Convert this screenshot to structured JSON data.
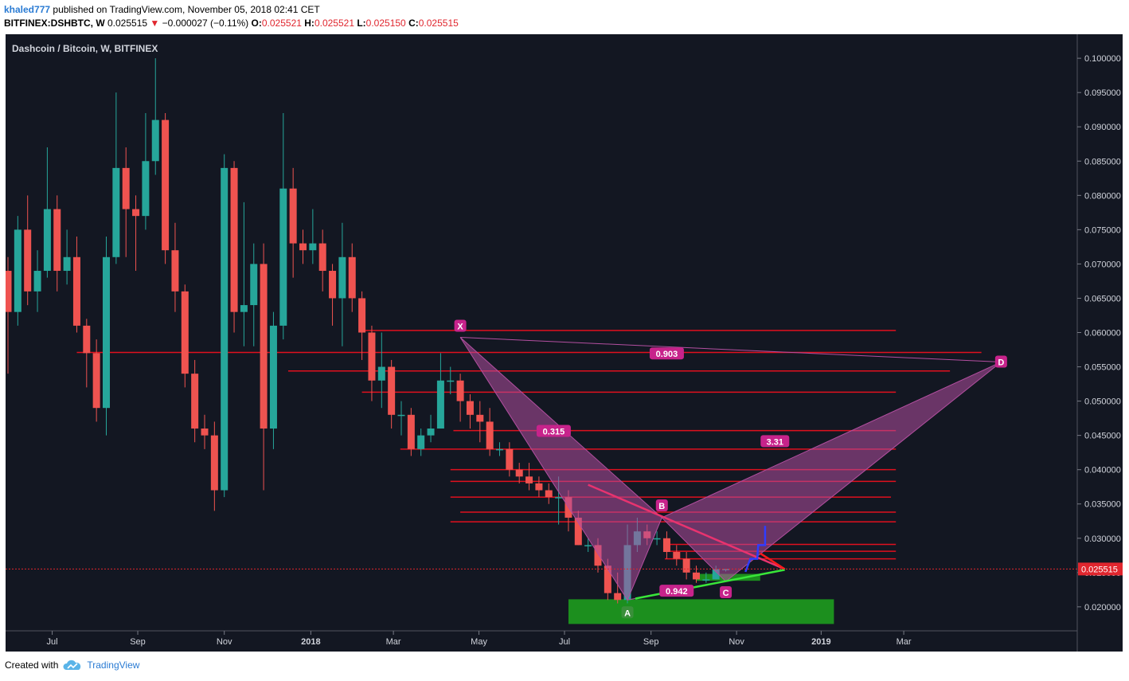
{
  "header": {
    "user": "khaled777",
    "published_text": "published on TradingView.com, November 05, 2018 02:41 CET",
    "symbol_line": "BITFINEX:DSHBTC, W",
    "last": "0.025515",
    "change": "−0.000027 (−0.11%)",
    "o_label": "O:",
    "o": "0.025521",
    "h_label": "H:",
    "h": "0.025521",
    "l_label": "L:",
    "l": "0.025150",
    "c_label": "C:",
    "c": "0.025515"
  },
  "footer": {
    "created_with": "Created with",
    "brand": "TradingView"
  },
  "colors": {
    "background": "#131722",
    "up": "#26a69a",
    "down": "#ef5350",
    "level_line": "#e0101e",
    "pattern_fill": "#b34fa0",
    "pattern_label": "#c7238b",
    "green_zone": "#1e9c1e",
    "green_line": "#39e639",
    "price_tag": "#e0262e"
  },
  "chart_data": {
    "type": "candlestick",
    "title": "Dashcoin / Bitcoin, W, BITFINEX",
    "y_axis": {
      "ylim": [
        0.0165,
        0.1035
      ],
      "ticks": [
        "0.020000",
        "0.025000",
        "0.030000",
        "0.035000",
        "0.040000",
        "0.045000",
        "0.050000",
        "0.055000",
        "0.060000",
        "0.065000",
        "0.070000",
        "0.075000",
        "0.080000",
        "0.085000",
        "0.090000",
        "0.095000",
        "0.100000"
      ],
      "last_price_label": "0.025515",
      "last_price": 0.025515
    },
    "x_axis": {
      "labels": [
        {
          "text": "Jul",
          "bar": 4.5,
          "bold": false
        },
        {
          "text": "Sep",
          "bar": 13.2,
          "bold": false
        },
        {
          "text": "Nov",
          "bar": 22.0,
          "bold": false
        },
        {
          "text": "2018",
          "bar": 30.8,
          "bold": true
        },
        {
          "text": "Mar",
          "bar": 39.2,
          "bold": false
        },
        {
          "text": "May",
          "bar": 47.9,
          "bold": false
        },
        {
          "text": "Jul",
          "bar": 56.6,
          "bold": false
        },
        {
          "text": "Sep",
          "bar": 65.4,
          "bold": false
        },
        {
          "text": "Nov",
          "bar": 74.1,
          "bold": false
        },
        {
          "text": "2019",
          "bar": 82.7,
          "bold": true
        },
        {
          "text": "Mar",
          "bar": 91.1,
          "bold": false
        }
      ]
    },
    "candles": [
      [
        0.069,
        0.063,
        0.071,
        0.054
      ],
      [
        0.063,
        0.075,
        0.077,
        0.061
      ],
      [
        0.075,
        0.066,
        0.08,
        0.064
      ],
      [
        0.066,
        0.069,
        0.072,
        0.063
      ],
      [
        0.069,
        0.078,
        0.087,
        0.068
      ],
      [
        0.078,
        0.069,
        0.08,
        0.066
      ],
      [
        0.069,
        0.071,
        0.075,
        0.067
      ],
      [
        0.071,
        0.061,
        0.074,
        0.06
      ],
      [
        0.061,
        0.057,
        0.062,
        0.052
      ],
      [
        0.057,
        0.049,
        0.059,
        0.047
      ],
      [
        0.049,
        0.071,
        0.074,
        0.045
      ],
      [
        0.071,
        0.084,
        0.095,
        0.07
      ],
      [
        0.084,
        0.078,
        0.087,
        0.071
      ],
      [
        0.078,
        0.077,
        0.08,
        0.069
      ],
      [
        0.077,
        0.085,
        0.092,
        0.075
      ],
      [
        0.085,
        0.091,
        0.1,
        0.083
      ],
      [
        0.091,
        0.072,
        0.092,
        0.07
      ],
      [
        0.072,
        0.066,
        0.076,
        0.063
      ],
      [
        0.066,
        0.054,
        0.067,
        0.052
      ],
      [
        0.054,
        0.046,
        0.056,
        0.044
      ],
      [
        0.046,
        0.045,
        0.048,
        0.043
      ],
      [
        0.045,
        0.037,
        0.047,
        0.034
      ],
      [
        0.037,
        0.084,
        0.086,
        0.036
      ],
      [
        0.084,
        0.063,
        0.085,
        0.06
      ],
      [
        0.063,
        0.064,
        0.079,
        0.058
      ],
      [
        0.064,
        0.07,
        0.073,
        0.058
      ],
      [
        0.07,
        0.046,
        0.073,
        0.037
      ],
      [
        0.046,
        0.061,
        0.063,
        0.043
      ],
      [
        0.061,
        0.081,
        0.092,
        0.059
      ],
      [
        0.081,
        0.073,
        0.084,
        0.068
      ],
      [
        0.073,
        0.072,
        0.075,
        0.07
      ],
      [
        0.072,
        0.073,
        0.078,
        0.07
      ],
      [
        0.073,
        0.069,
        0.075,
        0.066
      ],
      [
        0.069,
        0.065,
        0.07,
        0.061
      ],
      [
        0.065,
        0.071,
        0.076,
        0.058
      ],
      [
        0.071,
        0.065,
        0.073,
        0.063
      ],
      [
        0.065,
        0.06,
        0.066,
        0.056
      ],
      [
        0.06,
        0.053,
        0.061,
        0.05
      ],
      [
        0.053,
        0.055,
        0.06,
        0.049
      ],
      [
        0.055,
        0.048,
        0.056,
        0.046
      ],
      [
        0.048,
        0.048,
        0.05,
        0.045
      ],
      [
        0.048,
        0.043,
        0.049,
        0.042
      ],
      [
        0.043,
        0.045,
        0.046,
        0.042
      ],
      [
        0.045,
        0.046,
        0.048,
        0.044
      ],
      [
        0.046,
        0.053,
        0.057,
        0.046
      ],
      [
        0.053,
        0.053,
        0.055,
        0.051
      ],
      [
        0.053,
        0.05,
        0.054,
        0.047
      ],
      [
        0.05,
        0.048,
        0.051,
        0.046
      ],
      [
        0.048,
        0.047,
        0.05,
        0.044
      ],
      [
        0.047,
        0.043,
        0.049,
        0.042
      ],
      [
        0.043,
        0.043,
        0.044,
        0.042
      ],
      [
        0.043,
        0.04,
        0.044,
        0.039
      ],
      [
        0.04,
        0.039,
        0.041,
        0.038
      ],
      [
        0.039,
        0.038,
        0.041,
        0.037
      ],
      [
        0.038,
        0.037,
        0.039,
        0.036
      ],
      [
        0.037,
        0.036,
        0.038,
        0.035
      ],
      [
        0.036,
        0.036,
        0.039,
        0.032
      ],
      [
        0.036,
        0.033,
        0.037,
        0.031
      ],
      [
        0.033,
        0.029,
        0.034,
        0.029
      ],
      [
        0.029,
        0.029,
        0.03,
        0.028
      ],
      [
        0.029,
        0.026,
        0.03,
        0.025
      ],
      [
        0.026,
        0.022,
        0.027,
        0.021
      ],
      [
        0.022,
        0.021,
        0.025,
        0.0205
      ],
      [
        0.021,
        0.029,
        0.032,
        0.0205
      ],
      [
        0.029,
        0.031,
        0.033,
        0.028
      ],
      [
        0.031,
        0.03,
        0.032,
        0.029
      ],
      [
        0.03,
        0.03,
        0.031,
        0.029
      ],
      [
        0.03,
        0.028,
        0.031,
        0.027
      ],
      [
        0.028,
        0.027,
        0.029,
        0.026
      ],
      [
        0.027,
        0.025,
        0.028,
        0.024
      ],
      [
        0.025,
        0.024,
        0.026,
        0.0235
      ],
      [
        0.024,
        0.024,
        0.025,
        0.0235
      ],
      [
        0.024,
        0.0255,
        0.026,
        0.024
      ],
      [
        0.0255,
        0.025515,
        0.025521,
        0.02515
      ]
    ],
    "horizontal_levels": [
      {
        "price": 0.0571,
        "bar_from": 7.0,
        "bar_to": 99.0
      },
      {
        "price": 0.0603,
        "bar_from": 36.0,
        "bar_to": 90.3
      },
      {
        "price": 0.0544,
        "bar_from": 28.5,
        "bar_to": 95.8
      },
      {
        "price": 0.0513,
        "bar_from": 36.0,
        "bar_to": 90.3
      },
      {
        "price": 0.0457,
        "bar_from": 45.3,
        "bar_to": 90.3
      },
      {
        "price": 0.043,
        "bar_from": 39.9,
        "bar_to": 90.3
      },
      {
        "price": 0.04,
        "bar_from": 45.0,
        "bar_to": 90.3
      },
      {
        "price": 0.0383,
        "bar_from": 45.0,
        "bar_to": 90.3
      },
      {
        "price": 0.036,
        "bar_from": 45.0,
        "bar_to": 89.8
      },
      {
        "price": 0.0338,
        "bar_from": 46.0,
        "bar_to": 90.3
      },
      {
        "price": 0.0324,
        "bar_from": 45.0,
        "bar_to": 90.3
      },
      {
        "price": 0.0291,
        "bar_from": 66.8,
        "bar_to": 90.3
      },
      {
        "price": 0.0281,
        "bar_from": 66.8,
        "bar_to": 90.3
      },
      {
        "price": 0.027,
        "bar_from": 66.8,
        "bar_to": 90.3
      }
    ],
    "harmonic_pattern": {
      "points": [
        {
          "label": "X",
          "bar": 46.0,
          "price": 0.0593
        },
        {
          "label": "A",
          "bar": 63.0,
          "price": 0.021
        },
        {
          "label": "B",
          "bar": 66.5,
          "price": 0.033
        },
        {
          "label": "C",
          "bar": 73.0,
          "price": 0.0237
        },
        {
          "label": "D",
          "bar": 101.0,
          "price": 0.0557
        }
      ],
      "ratios": [
        {
          "text": "0.315",
          "bar": 55.5,
          "price": 0.0456
        },
        {
          "text": "0.942",
          "bar": 68.0,
          "price": 0.0223
        },
        {
          "text": "3.31",
          "bar": 78.0,
          "price": 0.0441
        },
        {
          "text": "0.903",
          "bar": 67.0,
          "price": 0.0569
        }
      ]
    },
    "green_zone": {
      "bar_from": 57.0,
      "bar_to": 84.0,
      "price_low": 0.0175,
      "price_high": 0.0211
    },
    "small_green_zone": {
      "bar_from": 70.0,
      "bar_to": 76.5,
      "price_low": 0.0238,
      "price_high": 0.0248
    },
    "trend_lines": [
      {
        "color": "pink",
        "from": {
          "bar": 59.0,
          "price": 0.0378
        },
        "to": {
          "bar": 79.0,
          "price": 0.0255
        }
      },
      {
        "color": "red",
        "from": {
          "bar": 76.5,
          "price": 0.0278
        },
        "to": {
          "bar": 79.0,
          "price": 0.0255
        }
      },
      {
        "color": "green",
        "from": {
          "bar": 63.8,
          "price": 0.0212
        },
        "to": {
          "bar": 79.0,
          "price": 0.0254
        }
      }
    ],
    "blue_path": [
      [
        75.0,
        0.0251
      ],
      [
        75.5,
        0.027
      ],
      [
        76.2,
        0.027
      ],
      [
        76.3,
        0.029
      ],
      [
        77.0,
        0.029
      ],
      [
        77.0,
        0.0318
      ]
    ]
  }
}
